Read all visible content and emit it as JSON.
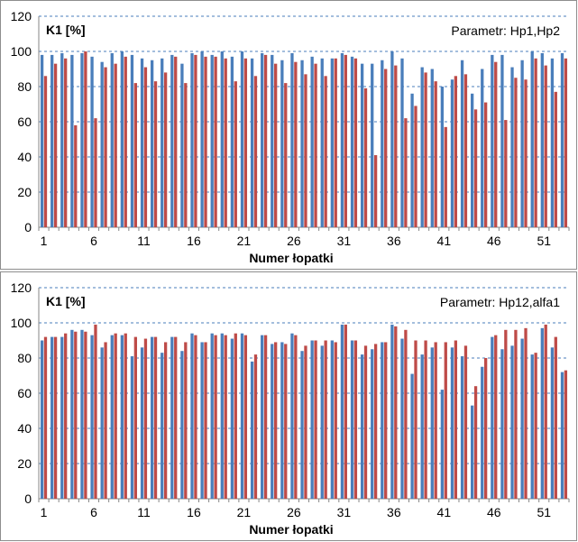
{
  "chart_data": [
    {
      "type": "bar",
      "ylabel": "K1 [%]",
      "xlabel": "Numer łopatki",
      "annotation": "Parametr:  Hp1,Hp2",
      "ylim": [
        0,
        120
      ],
      "yticks": [
        "0",
        "20",
        "40",
        "60",
        "80",
        "100",
        "120"
      ],
      "xtick_labels": [
        "1",
        "6",
        "11",
        "16",
        "21",
        "26",
        "31",
        "36",
        "41",
        "46",
        "51"
      ],
      "categories": [
        1,
        2,
        3,
        4,
        5,
        6,
        7,
        8,
        9,
        10,
        11,
        12,
        13,
        14,
        15,
        16,
        17,
        18,
        19,
        20,
        21,
        22,
        23,
        24,
        25,
        26,
        27,
        28,
        29,
        30,
        31,
        32,
        33,
        34,
        35,
        36,
        37,
        38,
        39,
        40,
        41,
        42,
        43,
        44,
        45,
        46,
        47,
        48,
        49,
        50,
        51,
        52,
        53
      ],
      "series": [
        {
          "name": "Hp1",
          "color": "#4a7ebb",
          "values": [
            98,
            98,
            99,
            98,
            99,
            97,
            94,
            99,
            100,
            98,
            96,
            95,
            96,
            98,
            93,
            99,
            100,
            98,
            100,
            97,
            100,
            96,
            99,
            98,
            95,
            99,
            95,
            97,
            96,
            96,
            99,
            97,
            93,
            93,
            95,
            100,
            96,
            76,
            91,
            90,
            80,
            84,
            95,
            76,
            90,
            98,
            98,
            91,
            95,
            100,
            99,
            96,
            99
          ]
        },
        {
          "name": "Hp2",
          "color": "#be4b48",
          "values": [
            86,
            93,
            96,
            58,
            100,
            62,
            91,
            93,
            97,
            82,
            91,
            83,
            88,
            97,
            82,
            98,
            97,
            97,
            96,
            83,
            96,
            86,
            98,
            93,
            82,
            94,
            87,
            93,
            86,
            96,
            98,
            96,
            79,
            41,
            90,
            92,
            62,
            69,
            88,
            83,
            57,
            86,
            87,
            67,
            71,
            94,
            61,
            85,
            84,
            96,
            92,
            77,
            96
          ]
        }
      ]
    },
    {
      "type": "bar",
      "ylabel": "K1 [%]",
      "xlabel": "Numer łopatki",
      "annotation": "Parametr:  Hp12,alfa1",
      "ylim": [
        0,
        120
      ],
      "yticks": [
        "0",
        "20",
        "40",
        "60",
        "80",
        "100",
        "120"
      ],
      "xtick_labels": [
        "1",
        "6",
        "11",
        "16",
        "21",
        "26",
        "31",
        "36",
        "41",
        "46",
        "51"
      ],
      "categories": [
        1,
        2,
        3,
        4,
        5,
        6,
        7,
        8,
        9,
        10,
        11,
        12,
        13,
        14,
        15,
        16,
        17,
        18,
        19,
        20,
        21,
        22,
        23,
        24,
        25,
        26,
        27,
        28,
        29,
        30,
        31,
        32,
        33,
        34,
        35,
        36,
        37,
        38,
        39,
        40,
        41,
        42,
        43,
        44,
        45,
        46,
        47,
        48,
        49,
        50,
        51,
        52,
        53
      ],
      "series": [
        {
          "name": "Hp12",
          "color": "#4a7ebb",
          "values": [
            90,
            92,
            92,
            96,
            96,
            93,
            86,
            93,
            93,
            81,
            86,
            92,
            83,
            92,
            84,
            94,
            89,
            94,
            94,
            91,
            94,
            78,
            93,
            88,
            89,
            94,
            84,
            90,
            87,
            90,
            99,
            90,
            82,
            85,
            89,
            99,
            91,
            71,
            82,
            86,
            62,
            86,
            81,
            53,
            75,
            92,
            85,
            87,
            91,
            82,
            97,
            86,
            72
          ]
        },
        {
          "name": "alfa1",
          "color": "#be4b48",
          "values": [
            92,
            92,
            94,
            95,
            95,
            99,
            89,
            94,
            94,
            92,
            91,
            92,
            89,
            92,
            89,
            93,
            89,
            93,
            93,
            94,
            93,
            82,
            93,
            89,
            88,
            93,
            87,
            90,
            90,
            89,
            99,
            90,
            87,
            88,
            89,
            98,
            96,
            90,
            90,
            89,
            89,
            90,
            87,
            64,
            80,
            93,
            96,
            96,
            97,
            83,
            99,
            92,
            73
          ]
        }
      ]
    }
  ]
}
